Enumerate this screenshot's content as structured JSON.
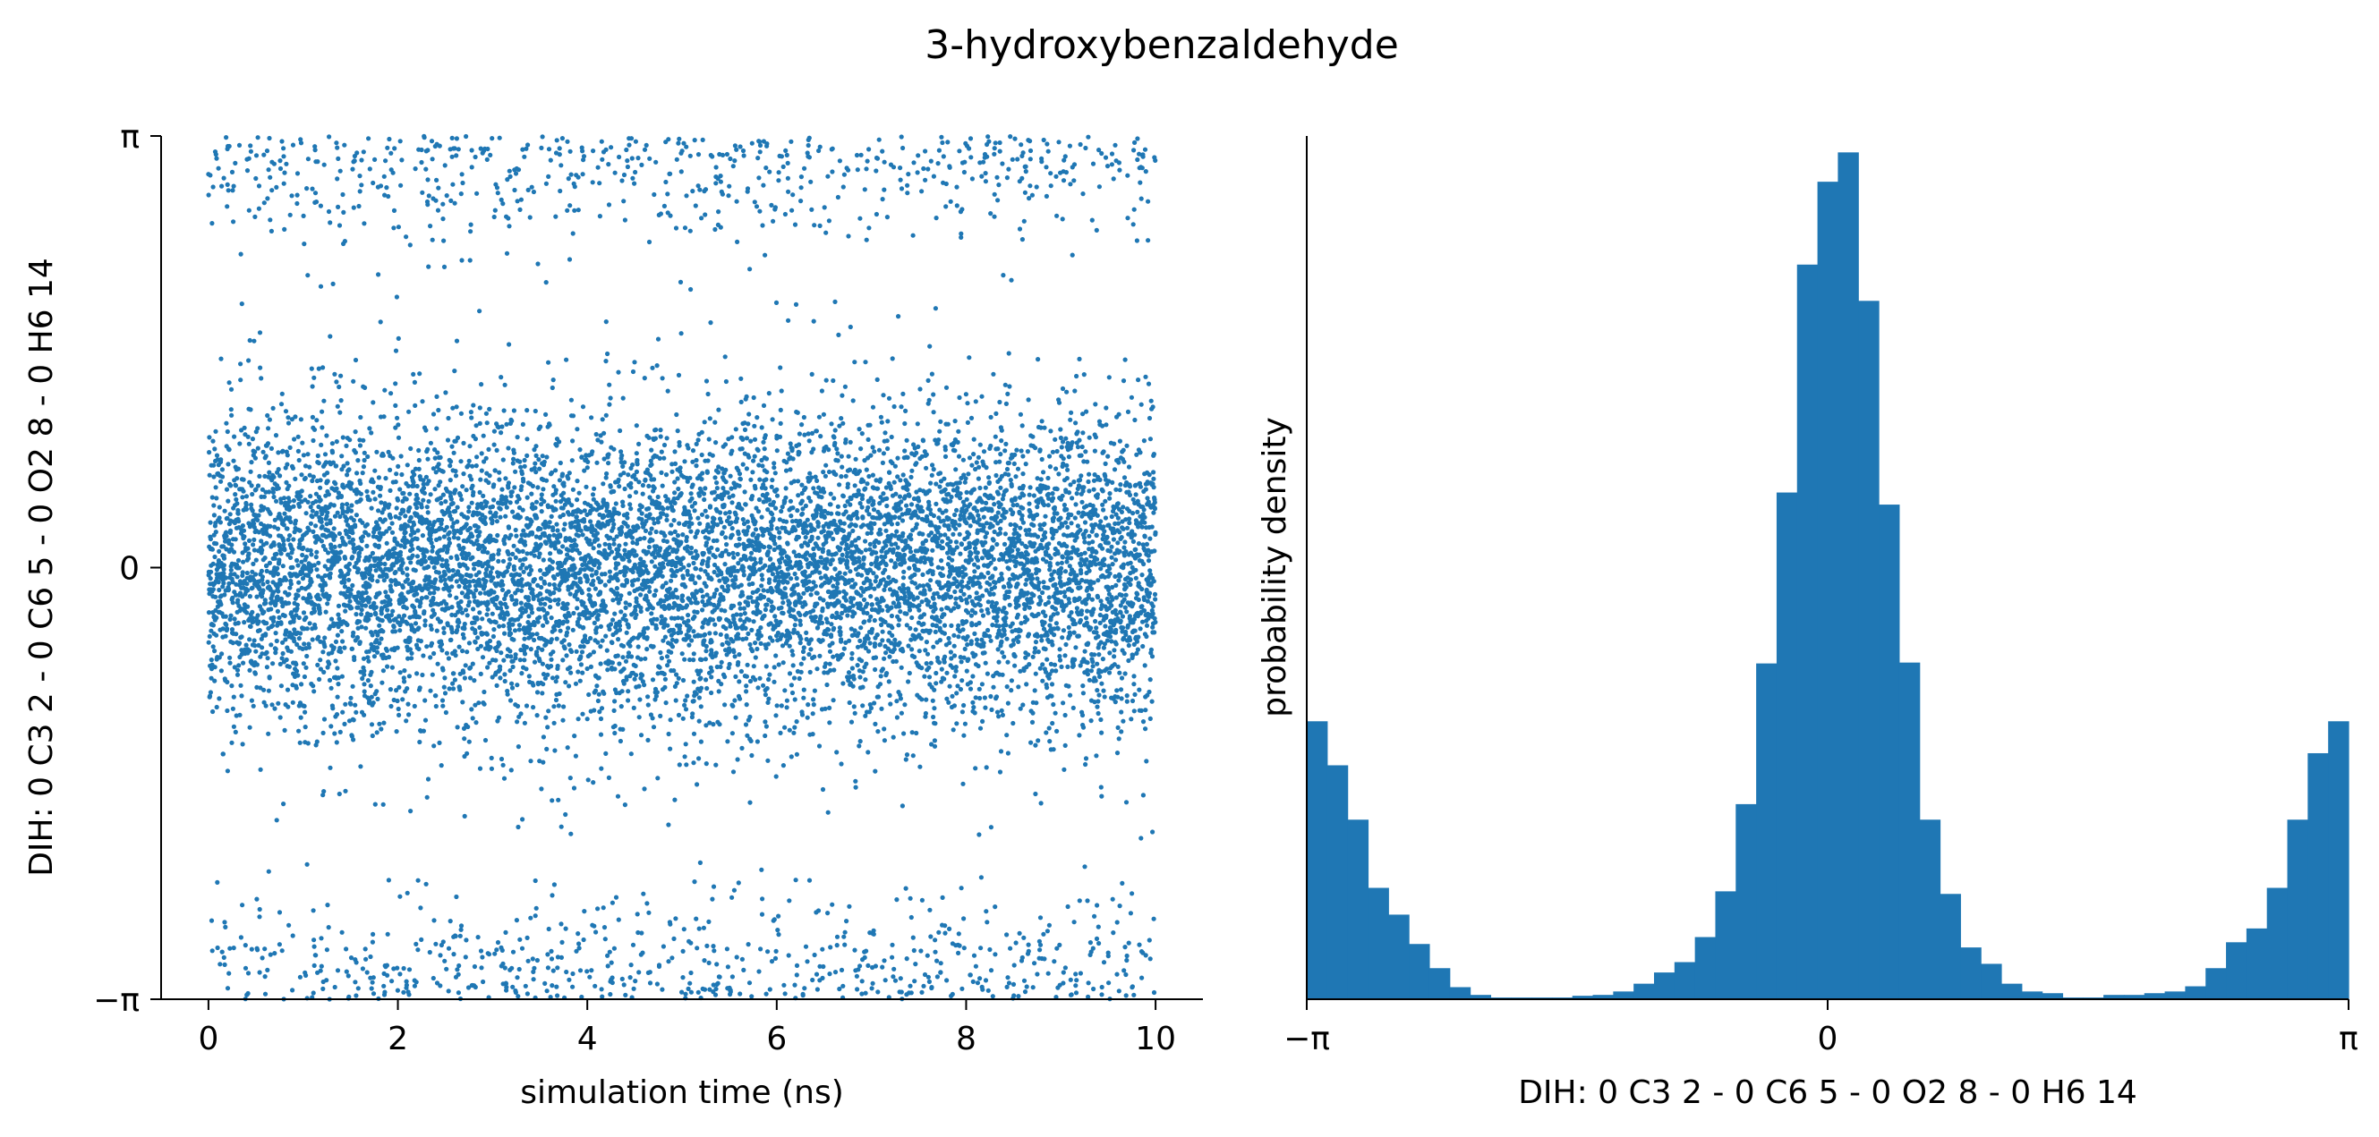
{
  "title": "3-hydroxybenzaldehyde",
  "colors": {
    "series": "#1f77b4",
    "axis": "#000000"
  },
  "chart_data": [
    {
      "type": "scatter",
      "xlabel": "simulation time (ns)",
      "ylabel": "DIH:  0 C3 2 -  0 C6 5 -  0 O2 8 -  0 H6 14",
      "xlim": [
        -0.5,
        10.5
      ],
      "ylim": [
        -3.14159,
        3.14159
      ],
      "xticks": [
        0,
        2,
        4,
        6,
        8,
        10
      ],
      "xtick_labels": [
        "0",
        "2",
        "4",
        "6",
        "8",
        "10"
      ],
      "yticks": [
        -3.14159,
        0,
        3.14159
      ],
      "ytick_labels": [
        "−π",
        "0",
        "π"
      ],
      "grid": false,
      "series": [
        {
          "time_range": [
            0,
            10
          ],
          "n_points": 10000,
          "distribution": "dihedral angle samples (rad): main cluster centred at 0 (sd ~0.6, ≈87%), about 13% near ±π, tails to ±1"
        }
      ]
    },
    {
      "type": "bar",
      "subtype": "histogram",
      "xlabel": "DIH:  0 C3 2 -  0 C6 5 -  0 O2 8 -  0 H6 14",
      "ylabel": "probability density",
      "xlim": [
        -3.14159,
        3.14159
      ],
      "xticks": [
        -3.14159,
        0,
        3.14159
      ],
      "xtick_labels": [
        "−π",
        "0",
        "π"
      ],
      "bin_edges": {
        "start": -3.14159,
        "end": 3.14159,
        "count": 50
      },
      "values": [
        0.322,
        0.271,
        0.208,
        0.129,
        0.098,
        0.064,
        0.036,
        0.014,
        0.005,
        0.002,
        0.002,
        0.002,
        0.002,
        0.004,
        0.005,
        0.009,
        0.018,
        0.031,
        0.043,
        0.072,
        0.125,
        0.226,
        0.389,
        0.587,
        0.851,
        0.947,
        0.981,
        0.809,
        0.573,
        0.39,
        0.208,
        0.122,
        0.06,
        0.041,
        0.018,
        0.009,
        0.007,
        0.002,
        0.002,
        0.005,
        0.005,
        0.007,
        0.009,
        0.015,
        0.036,
        0.066,
        0.082,
        0.129,
        0.208,
        0.285,
        0.322
      ],
      "ylim": [
        0,
        1.0
      ],
      "yticks": [],
      "grid": false
    }
  ]
}
